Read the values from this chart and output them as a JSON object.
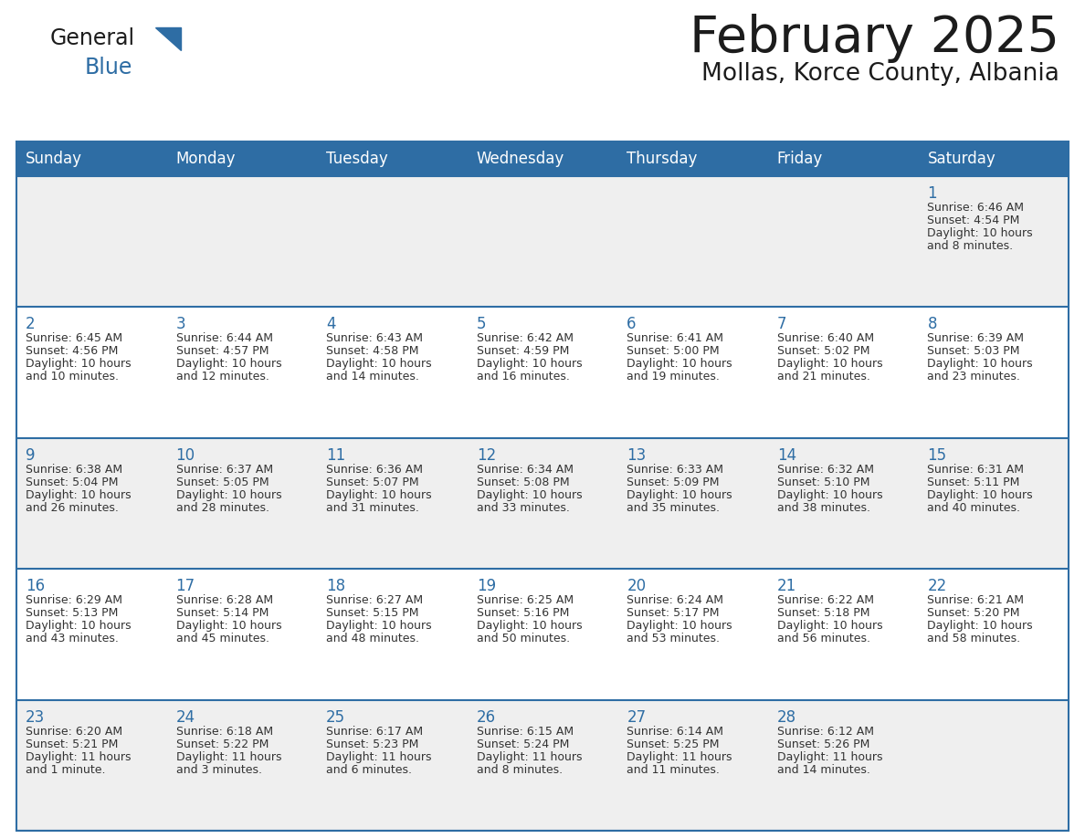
{
  "title": "February 2025",
  "subtitle": "Mollas, Korce County, Albania",
  "header_bg": "#2E6DA4",
  "header_text": "#FFFFFF",
  "row_bg_gray": "#EFEFEF",
  "row_bg_white": "#FFFFFF",
  "day_number_color": "#2E6DA4",
  "text_color": "#333333",
  "line_color": "#2E6DA4",
  "days_of_week": [
    "Sunday",
    "Monday",
    "Tuesday",
    "Wednesday",
    "Thursday",
    "Friday",
    "Saturday"
  ],
  "weeks": [
    [
      {
        "day": "",
        "info": ""
      },
      {
        "day": "",
        "info": ""
      },
      {
        "day": "",
        "info": ""
      },
      {
        "day": "",
        "info": ""
      },
      {
        "day": "",
        "info": ""
      },
      {
        "day": "",
        "info": ""
      },
      {
        "day": "1",
        "info": "Sunrise: 6:46 AM\nSunset: 4:54 PM\nDaylight: 10 hours\nand 8 minutes."
      }
    ],
    [
      {
        "day": "2",
        "info": "Sunrise: 6:45 AM\nSunset: 4:56 PM\nDaylight: 10 hours\nand 10 minutes."
      },
      {
        "day": "3",
        "info": "Sunrise: 6:44 AM\nSunset: 4:57 PM\nDaylight: 10 hours\nand 12 minutes."
      },
      {
        "day": "4",
        "info": "Sunrise: 6:43 AM\nSunset: 4:58 PM\nDaylight: 10 hours\nand 14 minutes."
      },
      {
        "day": "5",
        "info": "Sunrise: 6:42 AM\nSunset: 4:59 PM\nDaylight: 10 hours\nand 16 minutes."
      },
      {
        "day": "6",
        "info": "Sunrise: 6:41 AM\nSunset: 5:00 PM\nDaylight: 10 hours\nand 19 minutes."
      },
      {
        "day": "7",
        "info": "Sunrise: 6:40 AM\nSunset: 5:02 PM\nDaylight: 10 hours\nand 21 minutes."
      },
      {
        "day": "8",
        "info": "Sunrise: 6:39 AM\nSunset: 5:03 PM\nDaylight: 10 hours\nand 23 minutes."
      }
    ],
    [
      {
        "day": "9",
        "info": "Sunrise: 6:38 AM\nSunset: 5:04 PM\nDaylight: 10 hours\nand 26 minutes."
      },
      {
        "day": "10",
        "info": "Sunrise: 6:37 AM\nSunset: 5:05 PM\nDaylight: 10 hours\nand 28 minutes."
      },
      {
        "day": "11",
        "info": "Sunrise: 6:36 AM\nSunset: 5:07 PM\nDaylight: 10 hours\nand 31 minutes."
      },
      {
        "day": "12",
        "info": "Sunrise: 6:34 AM\nSunset: 5:08 PM\nDaylight: 10 hours\nand 33 minutes."
      },
      {
        "day": "13",
        "info": "Sunrise: 6:33 AM\nSunset: 5:09 PM\nDaylight: 10 hours\nand 35 minutes."
      },
      {
        "day": "14",
        "info": "Sunrise: 6:32 AM\nSunset: 5:10 PM\nDaylight: 10 hours\nand 38 minutes."
      },
      {
        "day": "15",
        "info": "Sunrise: 6:31 AM\nSunset: 5:11 PM\nDaylight: 10 hours\nand 40 minutes."
      }
    ],
    [
      {
        "day": "16",
        "info": "Sunrise: 6:29 AM\nSunset: 5:13 PM\nDaylight: 10 hours\nand 43 minutes."
      },
      {
        "day": "17",
        "info": "Sunrise: 6:28 AM\nSunset: 5:14 PM\nDaylight: 10 hours\nand 45 minutes."
      },
      {
        "day": "18",
        "info": "Sunrise: 6:27 AM\nSunset: 5:15 PM\nDaylight: 10 hours\nand 48 minutes."
      },
      {
        "day": "19",
        "info": "Sunrise: 6:25 AM\nSunset: 5:16 PM\nDaylight: 10 hours\nand 50 minutes."
      },
      {
        "day": "20",
        "info": "Sunrise: 6:24 AM\nSunset: 5:17 PM\nDaylight: 10 hours\nand 53 minutes."
      },
      {
        "day": "21",
        "info": "Sunrise: 6:22 AM\nSunset: 5:18 PM\nDaylight: 10 hours\nand 56 minutes."
      },
      {
        "day": "22",
        "info": "Sunrise: 6:21 AM\nSunset: 5:20 PM\nDaylight: 10 hours\nand 58 minutes."
      }
    ],
    [
      {
        "day": "23",
        "info": "Sunrise: 6:20 AM\nSunset: 5:21 PM\nDaylight: 11 hours\nand 1 minute."
      },
      {
        "day": "24",
        "info": "Sunrise: 6:18 AM\nSunset: 5:22 PM\nDaylight: 11 hours\nand 3 minutes."
      },
      {
        "day": "25",
        "info": "Sunrise: 6:17 AM\nSunset: 5:23 PM\nDaylight: 11 hours\nand 6 minutes."
      },
      {
        "day": "26",
        "info": "Sunrise: 6:15 AM\nSunset: 5:24 PM\nDaylight: 11 hours\nand 8 minutes."
      },
      {
        "day": "27",
        "info": "Sunrise: 6:14 AM\nSunset: 5:25 PM\nDaylight: 11 hours\nand 11 minutes."
      },
      {
        "day": "28",
        "info": "Sunrise: 6:12 AM\nSunset: 5:26 PM\nDaylight: 11 hours\nand 14 minutes."
      },
      {
        "day": "",
        "info": ""
      }
    ]
  ]
}
